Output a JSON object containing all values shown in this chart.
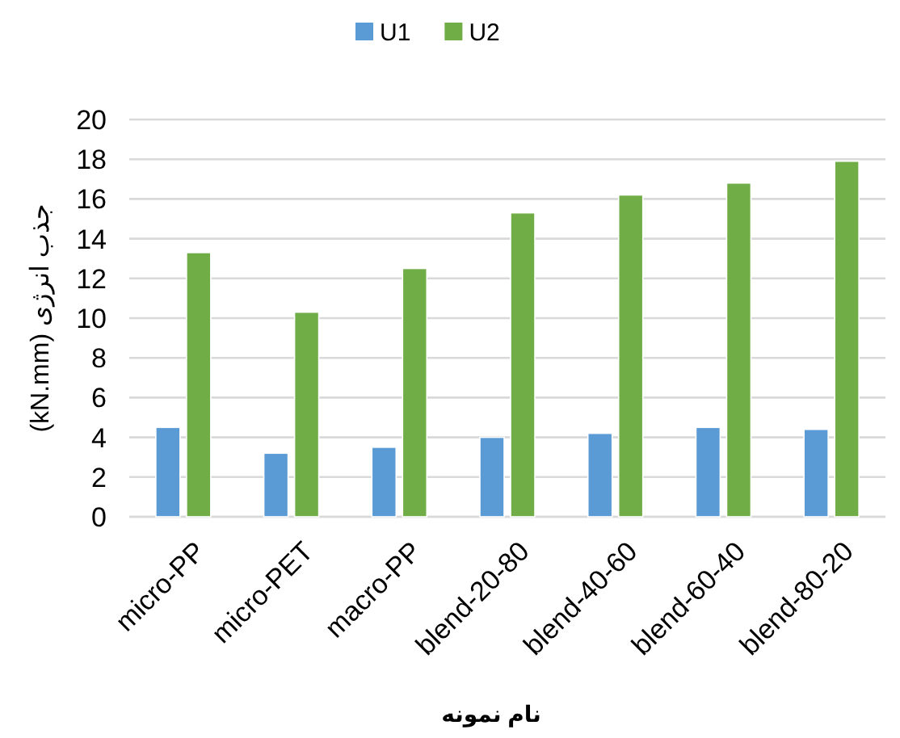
{
  "chart_data": {
    "type": "bar",
    "xlabel": "نام نمونه",
    "ylabel": "جذب انرژی (kN.mm)",
    "categories": [
      "micro-PP",
      "micro-PET",
      "macro-PP",
      "blend-20-80",
      "blend-40-60",
      "blend-60-40",
      "blend-80-20"
    ],
    "series": [
      {
        "name": "U1",
        "color": "#5b9bd5",
        "values": [
          4.5,
          3.2,
          3.5,
          4,
          4.2,
          4.5,
          4.4
        ]
      },
      {
        "name": "U2",
        "color": "#70ad47",
        "values": [
          13.3,
          10.3,
          12.5,
          15.3,
          16.2,
          16.8,
          17.9
        ]
      }
    ],
    "ylim": [
      0,
      20
    ],
    "yticks": [
      0,
      2,
      4,
      6,
      8,
      10,
      12,
      14,
      16,
      18,
      20
    ],
    "grid": "y",
    "legend": "top"
  }
}
